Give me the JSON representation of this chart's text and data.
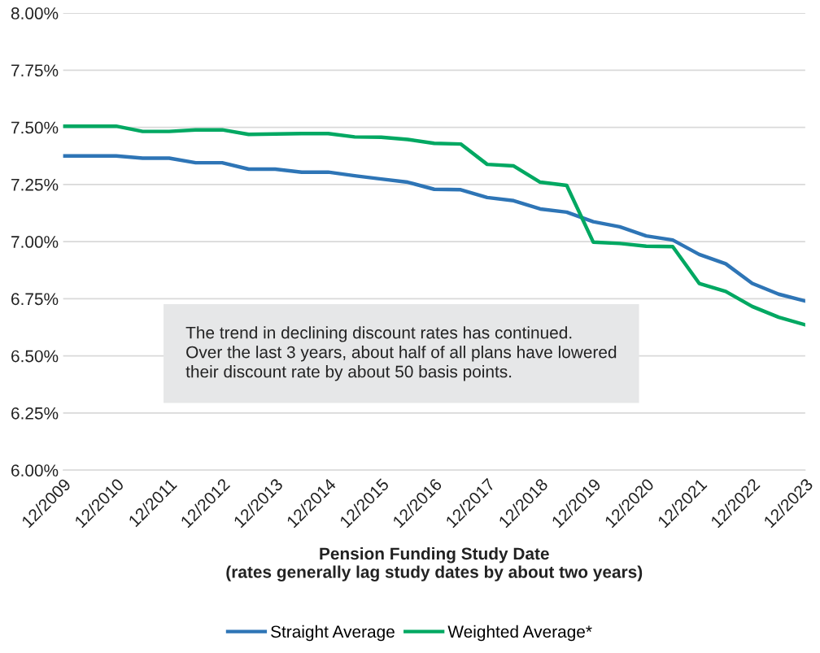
{
  "chart_data": {
    "type": "line",
    "xlabel": "Pension Funding Study Date\n(rates generally lag study dates by about two years)",
    "categories": [
      "12/2009",
      null,
      "12/2010",
      null,
      "12/2011",
      null,
      "12/2012",
      null,
      "12/2013",
      null,
      "12/2014",
      null,
      "12/2015",
      null,
      "12/2016",
      null,
      "12/2017",
      null,
      "12/2018",
      null,
      "12/2019",
      null,
      "12/2020",
      null,
      "12/2021",
      null,
      "12/2022",
      null,
      "12/2023"
    ],
    "series": [
      {
        "name": "Straight Average",
        "color": "#2e75b6",
        "values": [
          7.375,
          7.375,
          7.375,
          7.365,
          7.365,
          7.345,
          7.345,
          7.317,
          7.317,
          7.304,
          7.304,
          7.288,
          7.274,
          7.26,
          7.229,
          7.227,
          7.193,
          7.179,
          7.143,
          7.129,
          7.087,
          7.065,
          7.025,
          7.007,
          6.944,
          6.903,
          6.817,
          6.77,
          6.74
        ]
      },
      {
        "name": "Weighted Average*",
        "color": "#00a862",
        "values": [
          7.505,
          7.505,
          7.505,
          7.482,
          7.482,
          7.489,
          7.489,
          7.469,
          7.471,
          7.473,
          7.473,
          7.458,
          7.457,
          7.447,
          7.43,
          7.427,
          7.338,
          7.331,
          7.26,
          7.246,
          6.998,
          6.992,
          6.98,
          6.978,
          6.817,
          6.782,
          6.716,
          6.669,
          6.636
        ]
      }
    ],
    "ylim": [
      6.0,
      8.0
    ],
    "yticks": [
      {
        "value": 6.0,
        "label": "6.00%"
      },
      {
        "value": 6.25,
        "label": "6.25%"
      },
      {
        "value": 6.5,
        "label": "6.50%"
      },
      {
        "value": 6.75,
        "label": "6.75%"
      },
      {
        "value": 7.0,
        "label": "7.00%"
      },
      {
        "value": 7.25,
        "label": "7.25%"
      },
      {
        "value": 7.5,
        "label": "7.50%"
      },
      {
        "value": 7.75,
        "label": "7.75%"
      },
      {
        "value": 8.0,
        "label": "8.00%"
      }
    ],
    "annotations": [
      "The trend in declining discount rates has continued.\nOver the last 3 years, about half of all plans have lowered\ntheir discount rate by about 50 basis points."
    ],
    "grid": "y",
    "legend": "bottom",
    "marker": "none",
    "line_style": "solid"
  }
}
